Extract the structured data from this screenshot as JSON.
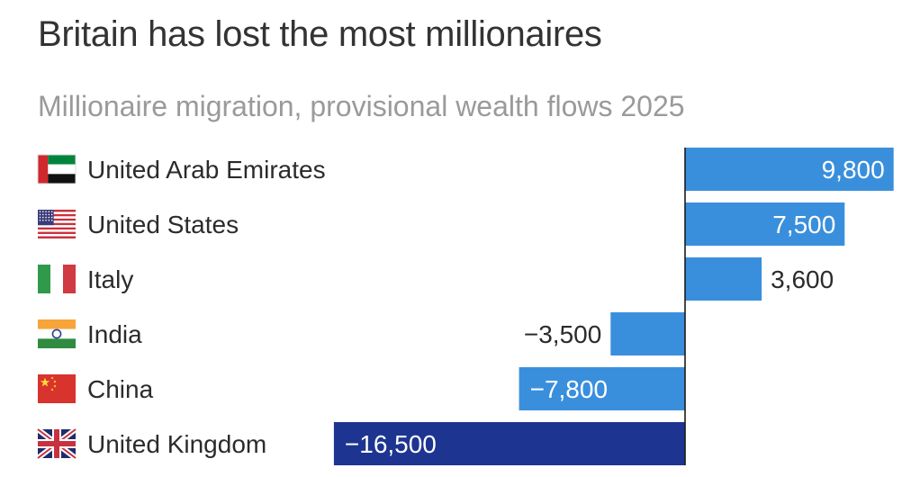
{
  "header": {
    "title": "Britain has lost the most millionaires",
    "subtitle": "Millionaire migration, provisional wealth flows 2025"
  },
  "colors": {
    "positive": "#3a8fdc",
    "negative": "#3a8fdc",
    "highlight": "#1d3590",
    "axis": "#1a1a1a",
    "label_text": "#2b2b2b"
  },
  "chart_data": {
    "type": "bar",
    "orientation": "horizontal",
    "categories": [
      "United Arab Emirates",
      "United States",
      "Italy",
      "India",
      "China",
      "United Kingdom"
    ],
    "values": [
      9800,
      7500,
      3600,
      -3500,
      -7800,
      -16500
    ],
    "value_labels": [
      "9,800",
      "7,500",
      "3,600",
      "−3,500",
      "−7,800",
      "−16,500"
    ],
    "icons": [
      "uae-flag-icon",
      "us-flag-icon",
      "italy-flag-icon",
      "india-flag-icon",
      "china-flag-icon",
      "uk-flag-icon"
    ],
    "highlight_index": 5,
    "title": "Britain has lost the most millionaires",
    "subtitle": "Millionaire migration, provisional wealth flows 2025",
    "xlim": [
      -16500,
      9800
    ],
    "grid": false,
    "legend": "none"
  }
}
